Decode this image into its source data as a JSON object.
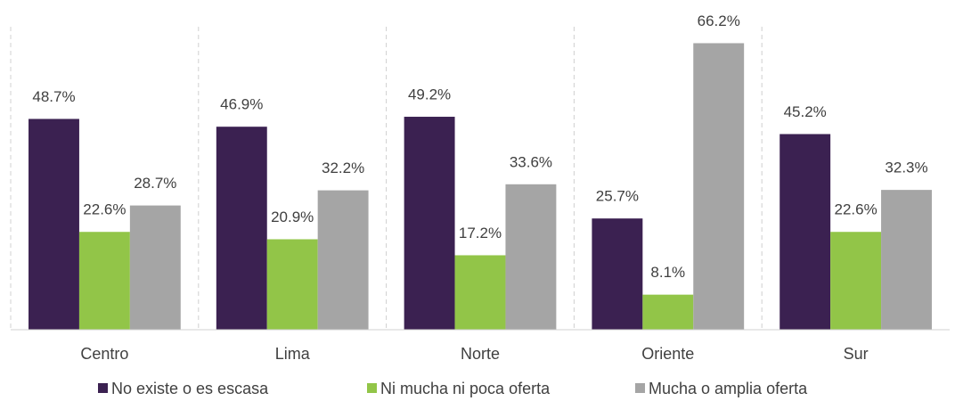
{
  "chart_data": {
    "type": "bar",
    "categories": [
      "Centro",
      "Lima",
      "Norte",
      "Oriente",
      "Sur"
    ],
    "series": [
      {
        "name": "No existe o es escasa",
        "color": "#3b2151",
        "values": [
          48.7,
          46.9,
          49.2,
          25.7,
          45.2
        ],
        "value_labels": [
          "48.7%",
          "46.9%",
          "49.2%",
          "25.7%",
          "45.2%"
        ]
      },
      {
        "name": "Ni mucha ni poca oferta",
        "color": "#92c548",
        "values": [
          22.6,
          20.9,
          17.2,
          8.1,
          22.6
        ],
        "value_labels": [
          "22.6%",
          "20.9%",
          "17.2%",
          "8.1%",
          "22.6%"
        ]
      },
      {
        "name": "Mucha o amplia oferta",
        "color": "#a5a5a5",
        "values": [
          28.7,
          32.2,
          33.6,
          66.2,
          32.3
        ],
        "value_labels": [
          "28.7%",
          "32.2%",
          "33.6%",
          "66.2%",
          "32.3%"
        ]
      }
    ],
    "ylim": [
      0,
      70
    ],
    "legend": "bottom"
  }
}
